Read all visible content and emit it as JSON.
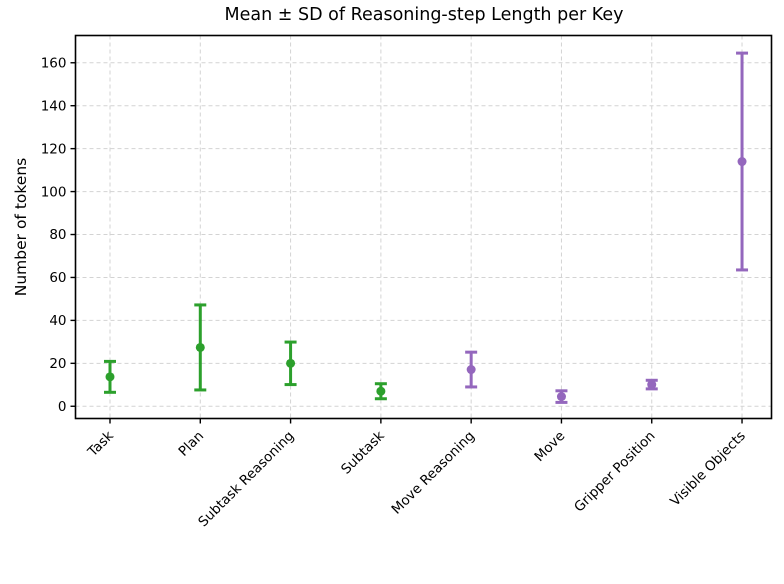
{
  "chart_data": {
    "type": "scatter",
    "subtype": "errorbar",
    "title": "Mean ± SD of Reasoning-step Length per Key",
    "xlabel": "",
    "ylabel": "Number of tokens",
    "categories": [
      "Task",
      "Plan",
      "Subtask Reasoning",
      "Subtask",
      "Move Reasoning",
      "Move",
      "Gripper Position",
      "Visible Objects"
    ],
    "series": [
      {
        "name": "mean",
        "values": [
          13.7,
          27.4,
          20.0,
          7.0,
          17.1,
          4.5,
          10.1,
          114.0
        ]
      },
      {
        "name": "sd",
        "values": [
          7.2,
          19.8,
          9.9,
          3.5,
          8.1,
          2.7,
          2.0,
          50.5
        ]
      }
    ],
    "point_colors": [
      "#2ca02c",
      "#2ca02c",
      "#2ca02c",
      "#2ca02c",
      "#9467bd",
      "#9467bd",
      "#9467bd",
      "#9467bd"
    ],
    "yticks": [
      0,
      20,
      40,
      60,
      80,
      100,
      120,
      140,
      160
    ],
    "ylim": [
      -5.7,
      172.7
    ],
    "grid": true,
    "grid_style": "dashed",
    "legend_position": "none",
    "colors": {
      "green": "#2ca02c",
      "purple": "#9467bd",
      "grid": "#d3d3d3",
      "axis": "#000000",
      "background": "#ffffff"
    }
  }
}
